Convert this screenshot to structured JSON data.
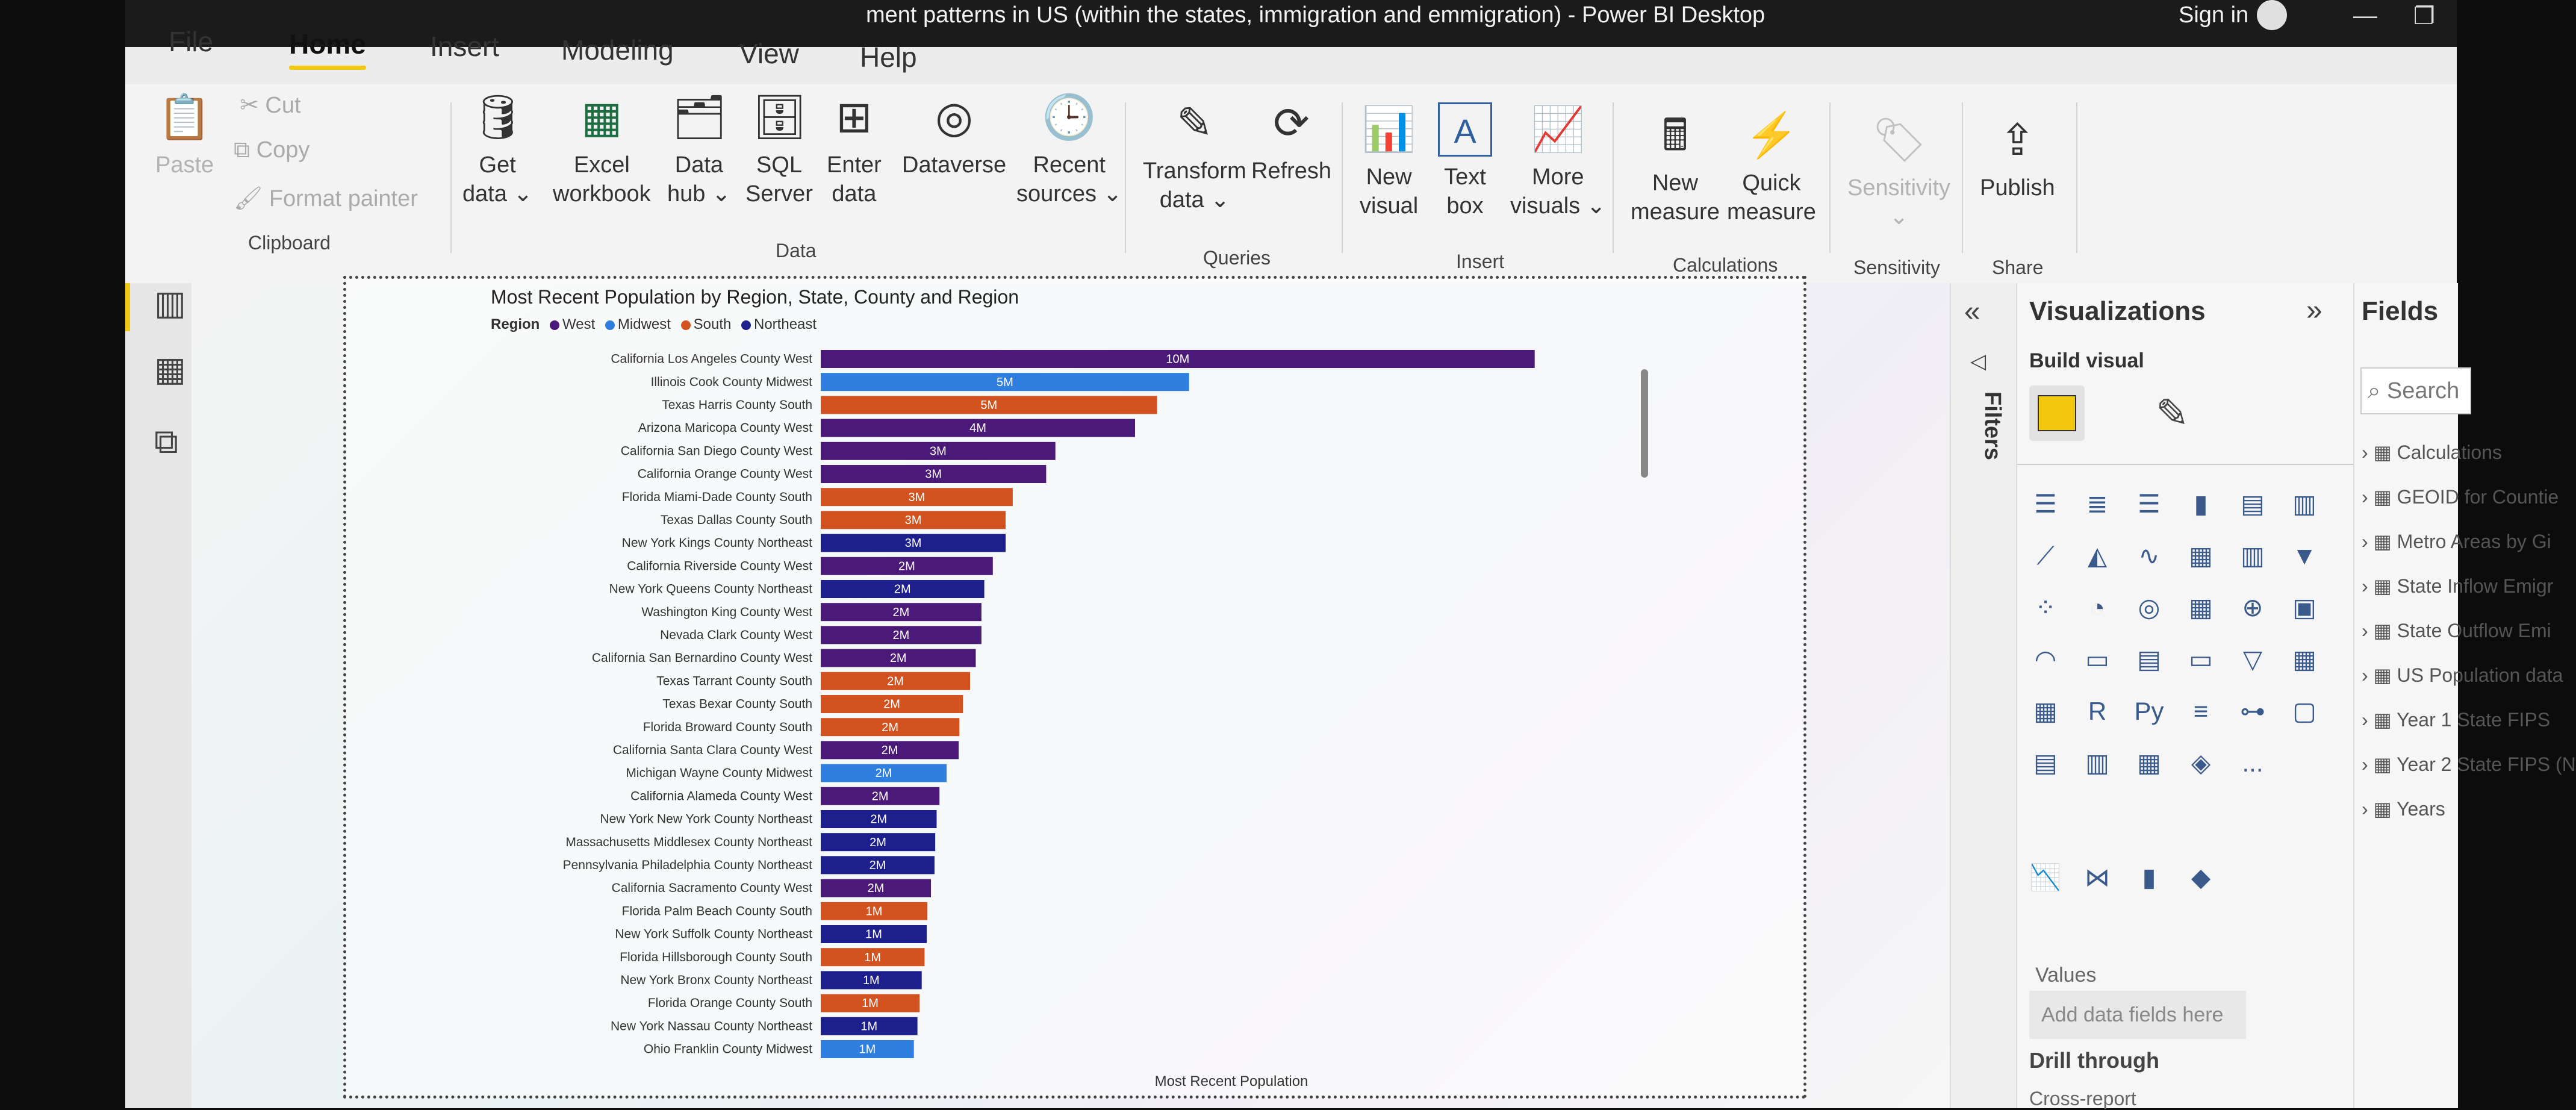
{
  "window": {
    "title": "ment patterns in US (within the states, immigration and emmigration) - Power BI Desktop",
    "sign_in": "Sign in",
    "minimize": "—",
    "restore": "❐"
  },
  "menu": [
    "File",
    "Home",
    "Insert",
    "Modeling",
    "View",
    "Help"
  ],
  "ribbon": {
    "clipboard": {
      "paste": "Paste",
      "cut": "Cut",
      "copy": "Copy",
      "format_painter": "Format painter",
      "group": "Clipboard"
    },
    "data": {
      "get_data": [
        "Get",
        "data ⌄"
      ],
      "excel": [
        "Excel",
        "workbook"
      ],
      "data_hub": [
        "Data",
        "hub ⌄"
      ],
      "sql": [
        "SQL",
        "Server"
      ],
      "enter": [
        "Enter",
        "data"
      ],
      "dataverse": "Dataverse",
      "recent": [
        "Recent",
        "sources ⌄"
      ],
      "group": "Data"
    },
    "queries": {
      "transform": [
        "Transform",
        "data ⌄"
      ],
      "refresh": "Refresh",
      "group": "Queries"
    },
    "insert": {
      "new_visual": [
        "New",
        "visual"
      ],
      "text_box": [
        "Text",
        "box"
      ],
      "more_visuals": [
        "More",
        "visuals ⌄"
      ],
      "group": "Insert"
    },
    "calculations": {
      "new_measure": [
        "New",
        "measure"
      ],
      "quick_measure": [
        "Quick",
        "measure"
      ],
      "group": "Calculations"
    },
    "sensitivity": {
      "label": "Sensitivity",
      "chevron": "⌄",
      "group": "Sensitivity"
    },
    "share": {
      "publish": "Publish",
      "group": "Share"
    }
  },
  "chart_data": {
    "type": "bar",
    "orientation": "horizontal",
    "title": "Most Recent Population by Region, State, County and Region",
    "legend_title": "Region",
    "legend": [
      {
        "name": "West",
        "color": "#4b1a78"
      },
      {
        "name": "Midwest",
        "color": "#2f7fe0"
      },
      {
        "name": "South",
        "color": "#d2531f"
      },
      {
        "name": "Northeast",
        "color": "#1c1f8c"
      }
    ],
    "xlabel": "Most Recent Population",
    "categories": [
      "California Los Angeles County West",
      "Illinois Cook County Midwest",
      "Texas Harris County South",
      "Arizona Maricopa County West",
      "California San Diego County West",
      "California Orange County West",
      "Florida Miami-Dade County South",
      "Texas Dallas County South",
      "New York Kings County Northeast",
      "California Riverside County West",
      "New York Queens County Northeast",
      "Washington King County West",
      "Nevada Clark County West",
      "California San Bernardino County West",
      "Texas Tarrant County South",
      "Texas Bexar County South",
      "Florida Broward County South",
      "California Santa Clara County West",
      "Michigan Wayne County Midwest",
      "California Alameda County West",
      "New York New York County Northeast",
      "Massachusetts Middlesex County Northeast",
      "Pennsylvania Philadelphia County Northeast",
      "California Sacramento County West",
      "Florida Palm Beach County South",
      "New York Suffolk County Northeast",
      "Florida Hillsborough County South",
      "New York Bronx County Northeast",
      "Florida Orange County South",
      "New York Nassau County Northeast",
      "Ohio Franklin County Midwest"
    ],
    "values": [
      10.04,
      5.18,
      4.73,
      4.42,
      3.3,
      3.17,
      2.7,
      2.6,
      2.6,
      2.42,
      2.3,
      2.26,
      2.26,
      2.18,
      2.1,
      2.0,
      1.95,
      1.94,
      1.77,
      1.67,
      1.63,
      1.61,
      1.6,
      1.55,
      1.5,
      1.49,
      1.46,
      1.42,
      1.39,
      1.36,
      1.31
    ],
    "regions": [
      "West",
      "Midwest",
      "South",
      "West",
      "West",
      "West",
      "South",
      "South",
      "Northeast",
      "West",
      "Northeast",
      "West",
      "West",
      "West",
      "South",
      "South",
      "South",
      "West",
      "Midwest",
      "West",
      "Northeast",
      "Northeast",
      "Northeast",
      "West",
      "South",
      "Northeast",
      "South",
      "Northeast",
      "South",
      "Northeast",
      "Midwest"
    ],
    "labels": [
      "10M",
      "5M",
      "5M",
      "4M",
      "3M",
      "3M",
      "3M",
      "3M",
      "3M",
      "2M",
      "2M",
      "2M",
      "2M",
      "2M",
      "2M",
      "2M",
      "2M",
      "2M",
      "2M",
      "2M",
      "2M",
      "2M",
      "2M",
      "2M",
      "1M",
      "1M",
      "1M",
      "1M",
      "1M",
      "1M",
      "1M"
    ],
    "unit": "M",
    "xlim": [
      0,
      10.5
    ]
  },
  "visualizations": {
    "header": "Visualizations",
    "collapse": "«",
    "expand": "»",
    "build_visual": "Build visual",
    "filters": "Filters",
    "more": "...",
    "values_label": "Values",
    "add_fields": "Add data fields here",
    "drill_through": "Drill through",
    "cross_report": "Cross-report",
    "gallery": [
      "bar-chart",
      "stacked-bar",
      "clustered-bar",
      "column",
      "stacked-column",
      "100-column",
      "line",
      "area",
      "line-stacked",
      "ribbon",
      "waterfall",
      "funnel",
      "scatter",
      "pie",
      "donut",
      "treemap",
      "map",
      "filled-map",
      "gauge",
      "card",
      "multi-card",
      "kpi",
      "slicer",
      "table",
      "matrix",
      "r-visual",
      "python-visual",
      "key-influencers",
      "decomposition-tree",
      "qa",
      "smart-narrative",
      "paginated",
      "power-apps",
      "power-automate",
      "more"
    ],
    "custom": [
      "custom-line-visual",
      "custom-sankey",
      "custom-bars",
      "custom-shape"
    ],
    "r_label": "R",
    "py_label": "Py"
  },
  "fields": {
    "header": "Fields",
    "search_placeholder": "Search",
    "items": [
      "Calculations",
      "GEOID for Countie",
      "Metro Areas by Gi",
      "State Inflow Emigr",
      "State Outflow Emi",
      "US Population data",
      "Year 1 State FIPS",
      "Year 2 State FIPS (N",
      "Years"
    ]
  }
}
